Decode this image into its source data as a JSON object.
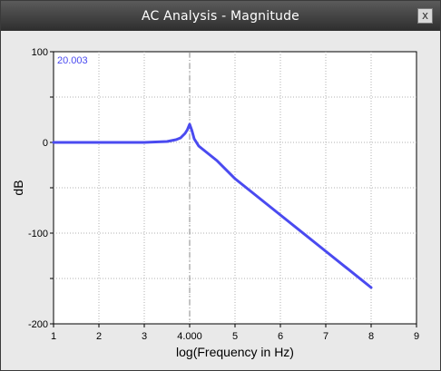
{
  "window": {
    "title": "AC Analysis - Magnitude",
    "close_label": "x"
  },
  "readout": {
    "value": "20.003",
    "cursor_x": 4.0,
    "cursor_label": "4.000"
  },
  "colors": {
    "series": "#4a4af0",
    "cursor": "#888888",
    "grid": "#b0b0b0"
  },
  "chart_data": {
    "type": "line",
    "title": "",
    "xlabel": "log(Frequency in Hz)",
    "ylabel": "dB",
    "xlim": [
      1,
      9
    ],
    "ylim": [
      -200,
      100
    ],
    "x_ticks": [
      1,
      2,
      3,
      5,
      6,
      7,
      8,
      9
    ],
    "x_tick_labels": [
      "1",
      "2",
      "3",
      "5",
      "6",
      "7",
      "8",
      "9"
    ],
    "y_ticks": [
      100,
      0,
      -100,
      -200
    ],
    "y_tick_labels": [
      "100",
      "0",
      "-100",
      "-200"
    ],
    "grid": true,
    "series": [
      {
        "x": [
          1,
          2,
          3,
          3.5,
          3.7,
          3.8,
          3.9,
          3.95,
          4.0,
          4.05,
          4.1,
          4.2,
          4.4,
          4.6,
          5.0,
          6.0,
          7.0,
          8.0
        ],
        "y": [
          0,
          0,
          0,
          1,
          3,
          5,
          10,
          14,
          20,
          13,
          4,
          -4,
          -12,
          -20,
          -40,
          -80,
          -120,
          -160
        ]
      }
    ]
  }
}
